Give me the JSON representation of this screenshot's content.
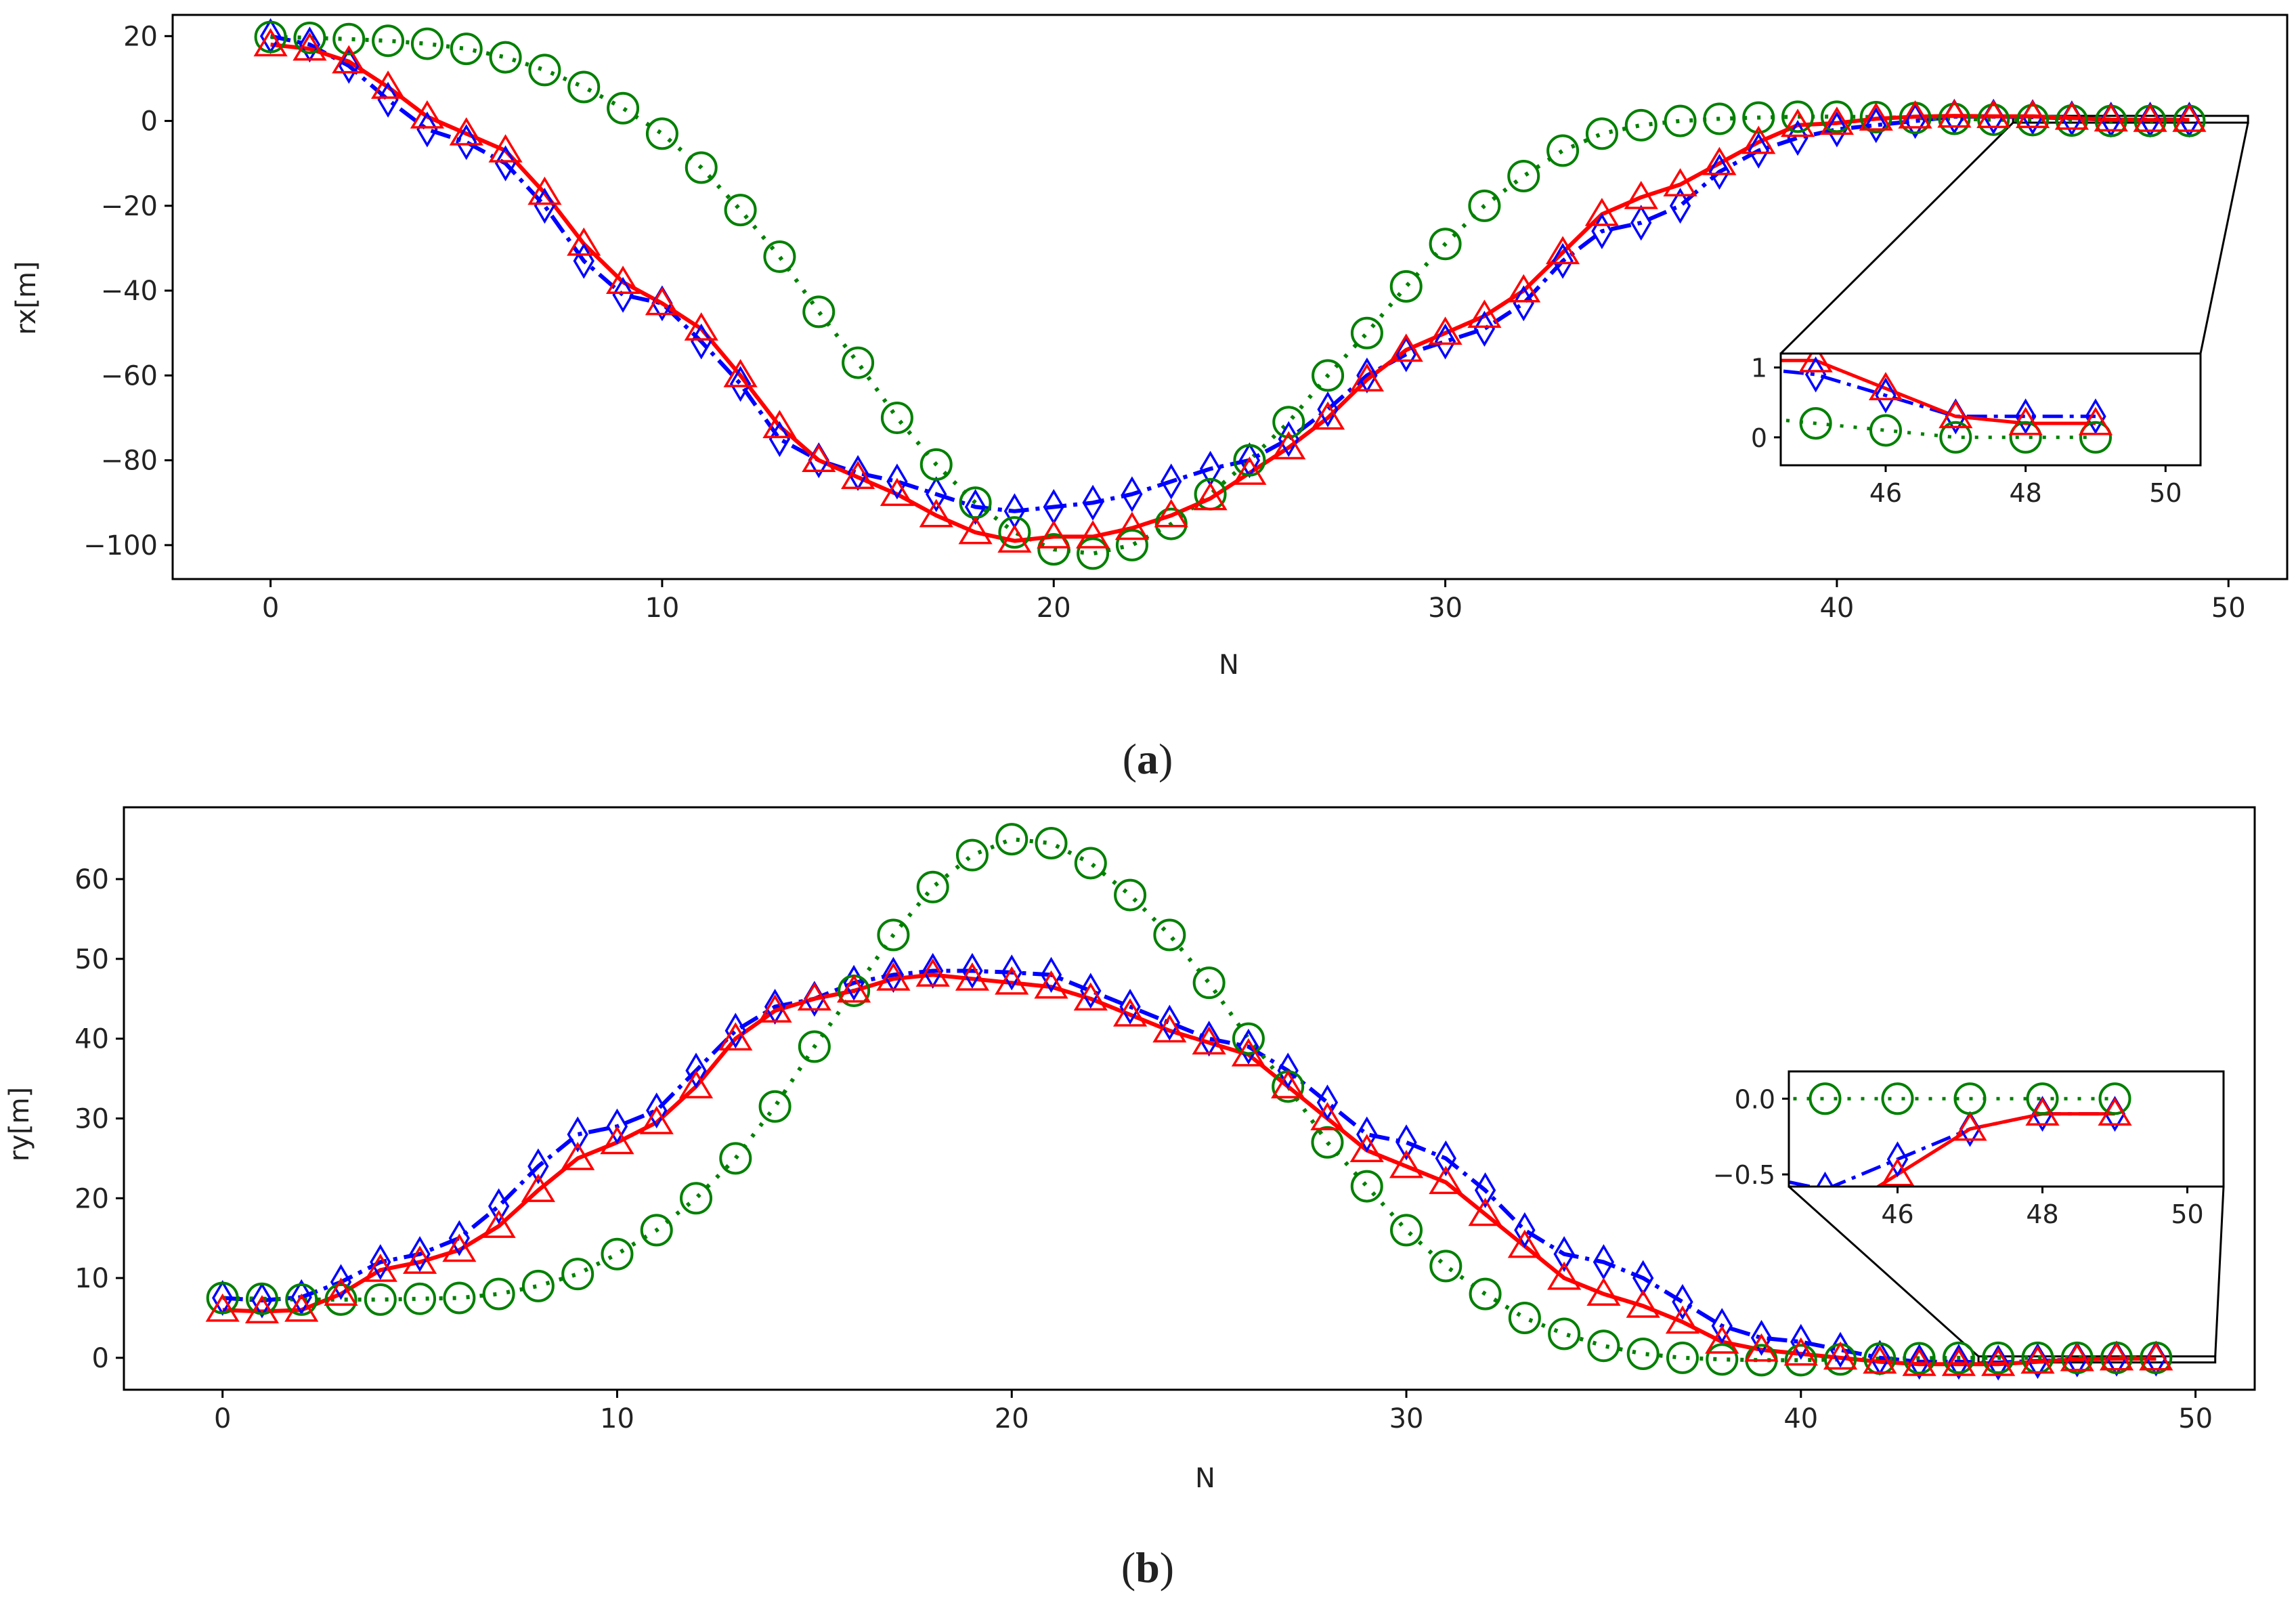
{
  "chart_data": [
    {
      "type": "line",
      "caption": {
        "open": "(",
        "letter": "a",
        "close": ")"
      },
      "xlabel": "N",
      "ylabel": "rx[m]",
      "xlim": [
        -2.5,
        51.5
      ],
      "ylim": [
        -108,
        25
      ],
      "xticks": [
        0,
        10,
        20,
        30,
        40,
        50
      ],
      "yticks": [
        20,
        0,
        -20,
        -40,
        -60,
        -80,
        -100
      ],
      "xtick_labels": [
        "0",
        "10",
        "20",
        "30",
        "40",
        "50"
      ],
      "ytick_labels": [
        "20",
        "0",
        "−20",
        "−40",
        "−60",
        "−80",
        "−100"
      ],
      "series": [
        {
          "name": "blue",
          "color": "#0000ff",
          "linestyle": "dashdot",
          "marker": "diamond",
          "values": [
            20,
            18,
            13,
            5,
            -2,
            -5,
            -10,
            -20,
            -33,
            -41,
            -43,
            -52,
            -62,
            -75,
            -80,
            -83,
            -85,
            -88,
            -91,
            -92,
            -91,
            -90,
            -88,
            -85,
            -82,
            -80,
            -75,
            -68,
            -60,
            -55,
            -52,
            -49,
            -43,
            -33,
            -26,
            -24,
            -20,
            -12,
            -7,
            -4,
            -2,
            -1,
            0,
            1,
            1,
            0.9,
            0.6,
            0.3,
            0.3,
            0.3
          ]
        },
        {
          "name": "green",
          "color": "#008000",
          "linestyle": "dotted",
          "marker": "circle",
          "values": [
            19.8,
            19.6,
            19.3,
            18.9,
            18.2,
            17,
            15,
            12,
            8,
            3,
            -3,
            -11,
            -21,
            -32,
            -45,
            -57,
            -70,
            -81,
            -90,
            -97,
            -101,
            -102,
            -100,
            -95,
            -88,
            -80,
            -71,
            -60,
            -50,
            -39,
            -29,
            -20,
            -13,
            -7,
            -3,
            -1,
            0,
            0.5,
            0.8,
            1,
            1,
            0.9,
            0.7,
            0.5,
            0.3,
            0.2,
            0.1,
            0,
            0,
            0
          ]
        },
        {
          "name": "red",
          "color": "#ff0000",
          "linestyle": "solid",
          "marker": "triangle",
          "values": [
            18,
            17,
            14,
            8,
            1,
            -3,
            -7,
            -17,
            -29,
            -38,
            -43,
            -49,
            -60,
            -72,
            -80,
            -84,
            -88,
            -93,
            -97,
            -99,
            -98,
            -98,
            -96,
            -93,
            -89,
            -83,
            -77,
            -70,
            -61,
            -54,
            -50,
            -46,
            -40,
            -31,
            -22,
            -18,
            -15,
            -10,
            -5,
            -1,
            -0.5,
            0.5,
            1,
            1.2,
            1.1,
            1.1,
            0.7,
            0.3,
            0.2,
            0.2
          ]
        }
      ],
      "inset": {
        "xlim": [
          44.5,
          50.5
        ],
        "ylim": [
          -0.4,
          1.2
        ],
        "xticks": [
          46,
          48,
          50
        ],
        "yticks": [
          1,
          0
        ],
        "xtick_labels": [
          "46",
          "48",
          "50"
        ],
        "ytick_labels": [
          "1",
          "0"
        ],
        "focus_x": [
          44.5,
          50.5
        ],
        "focus_y": [
          -0.4,
          1.2
        ]
      }
    },
    {
      "type": "line",
      "caption": {
        "open": "(",
        "letter": "b",
        "close": ")"
      },
      "xlabel": "N",
      "ylabel": "ry[m]",
      "xlim": [
        -2.5,
        51.5
      ],
      "ylim": [
        -4,
        69
      ],
      "xticks": [
        0,
        10,
        20,
        30,
        40,
        50
      ],
      "yticks": [
        0,
        10,
        20,
        30,
        40,
        50,
        60
      ],
      "xtick_labels": [
        "0",
        "10",
        "20",
        "30",
        "40",
        "50"
      ],
      "ytick_labels": [
        "0",
        "10",
        "20",
        "30",
        "40",
        "50",
        "60"
      ],
      "series": [
        {
          "name": "blue",
          "color": "#0000ff",
          "linestyle": "dashdot",
          "marker": "diamond",
          "values": [
            7.5,
            7.2,
            7.6,
            9.5,
            12,
            13,
            15,
            19,
            24,
            28,
            29,
            31,
            36,
            41,
            44,
            45,
            47,
            48,
            48.5,
            48.5,
            48.3,
            48,
            46,
            44,
            42,
            40,
            39,
            36,
            32,
            28,
            27,
            25,
            21,
            16,
            13,
            12,
            10,
            7,
            4,
            2.5,
            2,
            1,
            0,
            -0.5,
            -0.5,
            -0.6,
            -0.4,
            -0.2,
            -0.1,
            -0.1
          ]
        },
        {
          "name": "green",
          "color": "#008000",
          "linestyle": "dotted",
          "marker": "circle",
          "values": [
            7.5,
            7.4,
            7.3,
            7.3,
            7.3,
            7.4,
            7.5,
            8,
            9,
            10.5,
            13,
            16,
            20,
            25,
            31.5,
            39,
            46,
            53,
            59,
            63,
            65,
            64.5,
            62,
            58,
            53,
            47,
            40,
            34,
            27,
            21.5,
            16,
            11.5,
            8,
            5,
            3,
            1.5,
            0.5,
            0,
            -0.2,
            -0.3,
            -0.3,
            -0.2,
            -0.1,
            -0.05,
            0,
            0,
            0,
            0,
            0,
            0
          ]
        },
        {
          "name": "red",
          "color": "#ff0000",
          "linestyle": "solid",
          "marker": "triangle",
          "values": [
            6,
            5.8,
            6,
            8,
            11,
            12,
            13.5,
            16.5,
            21,
            25,
            27,
            29.5,
            34,
            40,
            43.5,
            45,
            46,
            47.5,
            48,
            47.5,
            47,
            46.5,
            45,
            43,
            41,
            39.5,
            38,
            34,
            30,
            26,
            24,
            22,
            18,
            14,
            10,
            8,
            6.5,
            4.5,
            2,
            1,
            0.5,
            0,
            -0.5,
            -0.8,
            -0.8,
            -0.8,
            -0.5,
            -0.2,
            -0.1,
            -0.1
          ]
        }
      ],
      "inset": {
        "xlim": [
          44.5,
          50.5
        ],
        "ylim": [
          -0.58,
          0.18
        ],
        "xticks": [
          46,
          48,
          50
        ],
        "yticks": [
          0,
          -0.5
        ],
        "xtick_labels": [
          "46",
          "48",
          "50"
        ],
        "ytick_labels": [
          "0.0",
          "−0.5"
        ],
        "focus_x": [
          44.5,
          50.5
        ],
        "focus_y": [
          -0.58,
          0.18
        ]
      }
    }
  ]
}
